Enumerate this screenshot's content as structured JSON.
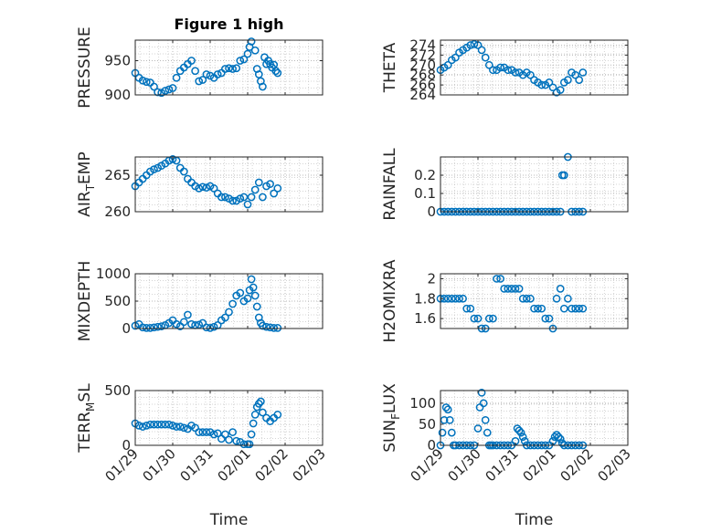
{
  "chart_data": [
    {
      "id": "pressure",
      "type": "scatter",
      "title": "Figure 1 high",
      "ylabel": "PRESSURE",
      "xlabel": "",
      "xlim": [
        0,
        5
      ],
      "ylim": [
        900,
        980
      ],
      "yticks": [
        900,
        950
      ],
      "ytick_labels": [
        "900",
        "950"
      ],
      "xticks": [
        0,
        1,
        2,
        3,
        4,
        5
      ],
      "xtick_labels": [],
      "grid": true,
      "color": "#0072BD",
      "x": [
        0.0,
        0.1,
        0.2,
        0.3,
        0.4,
        0.5,
        0.6,
        0.7,
        0.8,
        0.9,
        1.0,
        1.1,
        1.2,
        1.3,
        1.4,
        1.5,
        1.6,
        1.7,
        1.8,
        1.9,
        2.0,
        2.1,
        2.2,
        2.3,
        2.4,
        2.5,
        2.6,
        2.7,
        2.8,
        2.9,
        3.0,
        3.05,
        3.1,
        3.15,
        3.2,
        3.25,
        3.3,
        3.35,
        3.4,
        3.45,
        3.5,
        3.55,
        3.6,
        3.65,
        3.7,
        3.75,
        3.8
      ],
      "y": [
        932,
        925,
        921,
        919,
        918,
        912,
        904,
        903,
        906,
        908,
        910,
        925,
        935,
        940,
        945,
        950,
        935,
        920,
        922,
        930,
        928,
        925,
        930,
        932,
        938,
        939,
        938,
        939,
        950,
        952,
        960,
        970,
        978,
        982,
        965,
        938,
        930,
        920,
        912,
        955,
        945,
        950,
        945,
        940,
        944,
        935,
        932
      ]
    },
    {
      "id": "theta",
      "type": "scatter",
      "title": "",
      "ylabel": "THETA",
      "xlabel": "",
      "xlim": [
        0,
        5
      ],
      "ylim": [
        264,
        275
      ],
      "yticks": [
        264,
        266,
        268,
        270,
        272,
        274
      ],
      "ytick_labels": [
        "264",
        "266",
        "268",
        "270",
        "272",
        "274"
      ],
      "xticks": [
        0,
        1,
        2,
        3,
        4,
        5
      ],
      "xtick_labels": [],
      "grid": true,
      "color": "#0072BD",
      "x": [
        0.0,
        0.1,
        0.2,
        0.3,
        0.4,
        0.5,
        0.6,
        0.7,
        0.8,
        0.9,
        1.0,
        1.1,
        1.2,
        1.3,
        1.4,
        1.5,
        1.6,
        1.7,
        1.8,
        1.9,
        2.0,
        2.1,
        2.2,
        2.3,
        2.4,
        2.5,
        2.6,
        2.7,
        2.8,
        2.9,
        3.0,
        3.1,
        3.2,
        3.3,
        3.4,
        3.5,
        3.6,
        3.7,
        3.8
      ],
      "y": [
        269.0,
        269.5,
        270.0,
        271.0,
        271.5,
        272.5,
        273.0,
        273.5,
        274.0,
        274.2,
        274.0,
        273.0,
        271.5,
        270.0,
        269.0,
        269.0,
        269.5,
        269.5,
        269.0,
        269.0,
        268.5,
        268.5,
        268.0,
        268.5,
        268.0,
        267.0,
        266.5,
        266.0,
        266.0,
        266.5,
        265.5,
        264.5,
        265.0,
        266.5,
        267.0,
        268.5,
        268.0,
        267.0,
        268.5
      ]
    },
    {
      "id": "air-temp",
      "type": "scatter",
      "title": "",
      "ylabel": "AIR",
      "ylabel_sub": "T",
      "ylabel_after": "EMP",
      "xlabel": "",
      "xlim": [
        0,
        5
      ],
      "ylim": [
        260,
        267.5
      ],
      "yticks": [
        260,
        265
      ],
      "ytick_labels": [
        "260",
        "265"
      ],
      "xticks": [
        0,
        1,
        2,
        3,
        4,
        5
      ],
      "xtick_labels": [],
      "grid": true,
      "color": "#0072BD",
      "x": [
        0.0,
        0.1,
        0.2,
        0.3,
        0.4,
        0.5,
        0.6,
        0.7,
        0.8,
        0.9,
        1.0,
        1.1,
        1.2,
        1.3,
        1.4,
        1.5,
        1.6,
        1.7,
        1.8,
        1.9,
        2.0,
        2.1,
        2.2,
        2.3,
        2.4,
        2.5,
        2.6,
        2.7,
        2.8,
        2.9,
        3.0,
        3.1,
        3.2,
        3.3,
        3.4,
        3.5,
        3.6,
        3.7,
        3.8
      ],
      "y": [
        263.5,
        264.0,
        264.5,
        265.0,
        265.5,
        265.8,
        266.0,
        266.3,
        266.6,
        267.0,
        267.2,
        267.0,
        266.0,
        265.5,
        264.5,
        264.0,
        263.5,
        263.2,
        263.4,
        263.3,
        263.5,
        263.2,
        262.5,
        262.0,
        262.0,
        261.8,
        261.5,
        261.5,
        261.8,
        262.0,
        261.0,
        262.0,
        263.0,
        264.0,
        262.0,
        263.5,
        263.8,
        262.5,
        263.2
      ]
    },
    {
      "id": "rainfall",
      "type": "scatter",
      "title": "",
      "ylabel": "RAINFALL",
      "xlabel": "",
      "xlim": [
        0,
        5
      ],
      "ylim": [
        0,
        0.3
      ],
      "yticks": [
        0,
        0.1,
        0.2
      ],
      "ytick_labels": [
        "0",
        "0.1",
        "0.2"
      ],
      "xticks": [
        0,
        1,
        2,
        3,
        4,
        5
      ],
      "xtick_labels": [],
      "grid": true,
      "color": "#0072BD",
      "x": [
        0.0,
        0.1,
        0.2,
        0.3,
        0.4,
        0.5,
        0.6,
        0.7,
        0.8,
        0.9,
        1.0,
        1.1,
        1.2,
        1.3,
        1.4,
        1.5,
        1.6,
        1.7,
        1.8,
        1.9,
        2.0,
        2.1,
        2.2,
        2.3,
        2.4,
        2.5,
        2.6,
        2.7,
        2.8,
        2.9,
        3.0,
        3.1,
        3.2,
        3.25,
        3.3,
        3.4,
        3.5,
        3.6,
        3.7,
        3.8
      ],
      "y": [
        0,
        0,
        0,
        0,
        0,
        0,
        0,
        0,
        0,
        0,
        0,
        0,
        0,
        0,
        0,
        0,
        0,
        0,
        0,
        0,
        0,
        0,
        0,
        0,
        0,
        0,
        0,
        0,
        0,
        0,
        0,
        0,
        0,
        0.2,
        0.2,
        0.3,
        0,
        0,
        0,
        0
      ]
    },
    {
      "id": "mixdepth",
      "type": "scatter",
      "title": "",
      "ylabel": "MIXDEPTH",
      "xlabel": "",
      "xlim": [
        0,
        5
      ],
      "ylim": [
        0,
        1000
      ],
      "yticks": [
        0,
        500,
        1000
      ],
      "ytick_labels": [
        "0",
        "500",
        "1000"
      ],
      "xticks": [
        0,
        1,
        2,
        3,
        4,
        5
      ],
      "xtick_labels": [],
      "grid": true,
      "color": "#0072BD",
      "x": [
        0.0,
        0.1,
        0.2,
        0.3,
        0.4,
        0.5,
        0.6,
        0.7,
        0.8,
        0.9,
        1.0,
        1.1,
        1.2,
        1.3,
        1.4,
        1.5,
        1.6,
        1.7,
        1.8,
        1.9,
        2.0,
        2.1,
        2.2,
        2.3,
        2.4,
        2.5,
        2.6,
        2.7,
        2.8,
        2.9,
        3.0,
        3.05,
        3.1,
        3.15,
        3.2,
        3.25,
        3.3,
        3.35,
        3.4,
        3.5,
        3.6,
        3.7,
        3.8
      ],
      "y": [
        50,
        80,
        20,
        10,
        10,
        20,
        30,
        40,
        60,
        100,
        150,
        80,
        40,
        120,
        250,
        80,
        60,
        70,
        100,
        20,
        10,
        30,
        60,
        150,
        200,
        300,
        450,
        600,
        650,
        500,
        550,
        700,
        900,
        750,
        600,
        400,
        200,
        100,
        50,
        30,
        20,
        10,
        10
      ]
    },
    {
      "id": "h2omixra",
      "type": "scatter",
      "title": "",
      "ylabel": "H2OMIXRA",
      "xlabel": "",
      "xlim": [
        0,
        5
      ],
      "ylim": [
        1.5,
        2.05
      ],
      "yticks": [
        1.6,
        1.8,
        2.0
      ],
      "ytick_labels": [
        "1.6",
        "1.8",
        "2"
      ],
      "xticks": [
        0,
        1,
        2,
        3,
        4,
        5
      ],
      "xtick_labels": [],
      "grid": true,
      "color": "#0072BD",
      "x": [
        0.0,
        0.1,
        0.2,
        0.3,
        0.4,
        0.5,
        0.6,
        0.7,
        0.8,
        0.9,
        1.0,
        1.1,
        1.2,
        1.3,
        1.4,
        1.5,
        1.6,
        1.7,
        1.8,
        1.9,
        2.0,
        2.1,
        2.2,
        2.3,
        2.4,
        2.5,
        2.6,
        2.7,
        2.8,
        2.9,
        3.0,
        3.1,
        3.2,
        3.3,
        3.4,
        3.5,
        3.6,
        3.7,
        3.8
      ],
      "y": [
        1.8,
        1.8,
        1.8,
        1.8,
        1.8,
        1.8,
        1.8,
        1.7,
        1.7,
        1.6,
        1.6,
        1.5,
        1.5,
        1.6,
        1.6,
        2.0,
        2.0,
        1.9,
        1.9,
        1.9,
        1.9,
        1.9,
        1.8,
        1.8,
        1.8,
        1.7,
        1.7,
        1.7,
        1.6,
        1.6,
        1.5,
        1.8,
        1.9,
        1.7,
        1.8,
        1.7,
        1.7,
        1.7,
        1.7
      ]
    },
    {
      "id": "terr-msl",
      "type": "scatter",
      "title": "",
      "ylabel": "TERR",
      "ylabel_sub": "M",
      "ylabel_after": "SL",
      "xlabel": "Time",
      "xlim": [
        0,
        5
      ],
      "ylim": [
        0,
        500
      ],
      "yticks": [
        0,
        500
      ],
      "ytick_labels": [
        "0",
        "500"
      ],
      "xticks": [
        0,
        1,
        2,
        3,
        4,
        5
      ],
      "xtick_labels": [
        "01/29",
        "01/30",
        "01/31",
        "02/01",
        "02/02",
        "02/03"
      ],
      "grid": true,
      "color": "#0072BD",
      "x": [
        0.0,
        0.1,
        0.2,
        0.3,
        0.4,
        0.5,
        0.6,
        0.7,
        0.8,
        0.9,
        1.0,
        1.1,
        1.2,
        1.3,
        1.4,
        1.5,
        1.6,
        1.7,
        1.8,
        1.9,
        2.0,
        2.1,
        2.2,
        2.3,
        2.4,
        2.5,
        2.6,
        2.7,
        2.8,
        2.9,
        3.0,
        3.05,
        3.1,
        3.15,
        3.2,
        3.25,
        3.3,
        3.35,
        3.4,
        3.5,
        3.6,
        3.7,
        3.8
      ],
      "y": [
        200,
        180,
        170,
        180,
        190,
        190,
        190,
        190,
        190,
        190,
        180,
        170,
        170,
        160,
        150,
        180,
        160,
        120,
        120,
        120,
        120,
        100,
        110,
        60,
        100,
        50,
        120,
        40,
        30,
        10,
        10,
        10,
        100,
        200,
        280,
        350,
        380,
        400,
        300,
        250,
        220,
        250,
        280
      ]
    },
    {
      "id": "sun-flux",
      "type": "scatter",
      "title": "",
      "ylabel": "SUN",
      "ylabel_sub": "F",
      "ylabel_after": "LUX",
      "xlabel": "Time",
      "xlim": [
        0,
        5
      ],
      "ylim": [
        0,
        130
      ],
      "yticks": [
        0,
        50,
        100
      ],
      "ytick_labels": [
        "0",
        "50",
        "100"
      ],
      "xticks": [
        0,
        1,
        2,
        3,
        4,
        5
      ],
      "xtick_labels": [
        "01/29",
        "01/30",
        "01/31",
        "02/01",
        "02/02",
        "02/03"
      ],
      "grid": true,
      "color": "#0072BD",
      "x": [
        0.0,
        0.05,
        0.1,
        0.15,
        0.2,
        0.25,
        0.3,
        0.35,
        0.4,
        0.5,
        0.6,
        0.7,
        0.8,
        0.9,
        1.0,
        1.05,
        1.1,
        1.15,
        1.2,
        1.25,
        1.3,
        1.35,
        1.4,
        1.5,
        1.6,
        1.7,
        1.8,
        1.9,
        2.0,
        2.05,
        2.1,
        2.15,
        2.2,
        2.25,
        2.3,
        2.4,
        2.5,
        2.6,
        2.7,
        2.8,
        2.9,
        3.0,
        3.05,
        3.1,
        3.15,
        3.2,
        3.25,
        3.3,
        3.4,
        3.5,
        3.6,
        3.7,
        3.8
      ],
      "y": [
        0,
        30,
        60,
        90,
        85,
        60,
        30,
        0,
        0,
        0,
        0,
        0,
        0,
        0,
        40,
        90,
        125,
        100,
        60,
        30,
        0,
        0,
        0,
        0,
        0,
        0,
        0,
        0,
        10,
        40,
        35,
        30,
        20,
        10,
        0,
        0,
        0,
        0,
        0,
        0,
        0,
        10,
        20,
        25,
        20,
        15,
        5,
        0,
        0,
        0,
        0,
        0,
        0
      ]
    }
  ]
}
